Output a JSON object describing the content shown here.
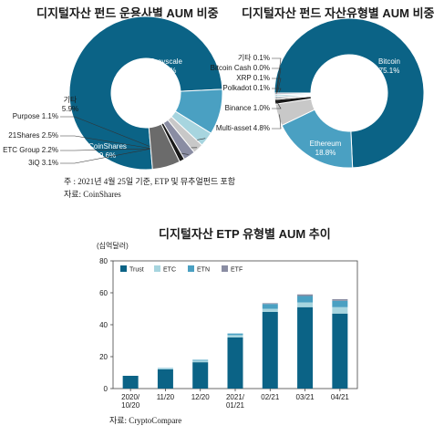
{
  "colors": {
    "dark": "#0b6386",
    "light": "#a7d5df",
    "mid": "#4aa0c2",
    "purple": "#8a8da3",
    "grey": "#c8c8c8",
    "darkgrey": "#6b6b6b",
    "black": "#1a1a1a",
    "bluegrey": "#7a9aaa"
  },
  "chart_data": [
    {
      "type": "pie",
      "title": "디지털자산 펀드 운용사별 AUM 비중",
      "slices": [
        {
          "label": "Grayscale",
          "value": 75.6,
          "display": "Grayscale\n75.6%",
          "color": "#0b6386"
        },
        {
          "label": "CoinShares",
          "value": 9.6,
          "display": "CoinShares\n9.6%",
          "color": "#4aa0c2"
        },
        {
          "label": "3iQ",
          "value": 3.1,
          "display": "3iQ  3.1%",
          "color": "#a7d5df"
        },
        {
          "label": "ETC Group",
          "value": 2.2,
          "display": "ETC Group  2.2%",
          "color": "#c8c8c8"
        },
        {
          "label": "21Shares",
          "value": 2.5,
          "display": "21Shares  2.5%",
          "color": "#8a8da3"
        },
        {
          "label": "Purpose",
          "value": 1.1,
          "display": "Purpose  1.1%",
          "color": "#1a1a1a"
        },
        {
          "label": "기타",
          "value": 5.9,
          "display": "기타\n5.9%",
          "color": "#6b6b6b"
        }
      ]
    },
    {
      "type": "pie",
      "title": "디지털자산 펀드 자산유형별 AUM 비중",
      "slices": [
        {
          "label": "Bitcoin",
          "value": 75.1,
          "display": "Bitcoin\n75.1%",
          "color": "#0b6386"
        },
        {
          "label": "Ethereum",
          "value": 18.8,
          "display": "Ethereum\n18.8%",
          "color": "#4aa0c2"
        },
        {
          "label": "Multi-asset",
          "value": 4.8,
          "display": "Multi-asset  4.8%",
          "color": "#c8c8c8"
        },
        {
          "label": "Binance",
          "value": 1.0,
          "display": "Binance  1.0%",
          "color": "#1a1a1a"
        },
        {
          "label": "Polkadot",
          "value": 0.1,
          "display": "Polkadot  0.1%",
          "color": "#6b6b6b"
        },
        {
          "label": "XRP",
          "value": 0.1,
          "display": "XRP  0.1%",
          "color": "#7a9aaa"
        },
        {
          "label": "Bitcoin Cash",
          "value": 0.0,
          "display": "Bitcoin Cash  0.0%",
          "color": "#a7d5df"
        },
        {
          "label": "기타",
          "value": 0.1,
          "display": "기타  0.1%",
          "color": "#8a8da3"
        }
      ]
    },
    {
      "type": "bar",
      "stacked": true,
      "title": "디지털자산 ETP 유형별 AUM 추이",
      "ylabel": "(십억달러)",
      "ylim": [
        0,
        80
      ],
      "yticks": [
        0,
        20,
        40,
        60,
        80
      ],
      "categories": [
        "2020/\n10/20",
        "11/20",
        "12/20",
        "2021/\n01/21",
        "02/21",
        "03/21",
        "04/21"
      ],
      "legend_position": "top-left",
      "series": [
        {
          "name": "Trust",
          "color": "#0b6386",
          "values": [
            8,
            12,
            16.5,
            32,
            48,
            51,
            47
          ]
        },
        {
          "name": "ETC",
          "color": "#a7d5df",
          "values": [
            0,
            0.5,
            1,
            1.5,
            2,
            3,
            4
          ]
        },
        {
          "name": "ETN",
          "color": "#4aa0c2",
          "values": [
            0,
            0.3,
            0.5,
            1,
            3,
            4,
            4
          ]
        },
        {
          "name": "ETF",
          "color": "#8a8da3",
          "values": [
            0,
            0,
            0,
            0,
            0.5,
            1,
            1
          ]
        }
      ]
    }
  ],
  "notes": {
    "pie_footnote": "주   : 2021년 4월 25일 기준, ETP 및 뮤추얼펀드 포함",
    "pie_source": "자료: CoinShares",
    "bar_source": "자료: CryptoCompare"
  }
}
